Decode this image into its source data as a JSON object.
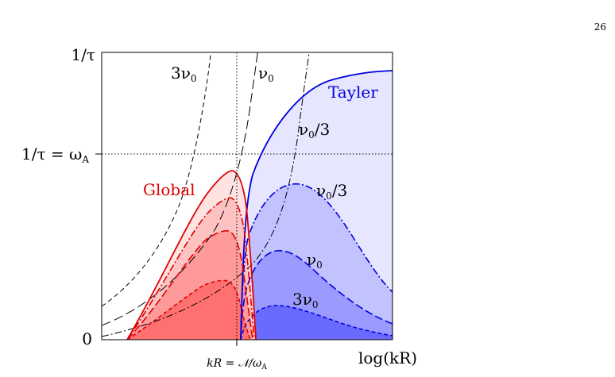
{
  "page_number": "26",
  "axes": {
    "y_top": "1/τ",
    "y_mid": "1/τ = ω",
    "y_mid_sub": "A",
    "y_zero": "0",
    "x_tick": "kR = 𝒩/ω",
    "x_tick_sub": "A",
    "x_label": "log(kR)"
  },
  "curve_labels": {
    "three_nu0_top": "3ν",
    "three_nu0_top_sub": "0",
    "nu0_top": "ν",
    "nu0_top_sub": "0",
    "nu0_third_upper": "ν",
    "nu0_third_upper_sub": "0",
    "nu0_third_upper_suffix": "/3",
    "nu0_third_right": "ν",
    "nu0_third_right_sub": "0",
    "nu0_third_right_suffix": "/3",
    "nu0_right": "ν",
    "nu0_right_sub": "0",
    "three_nu0_right": "3ν",
    "three_nu0_right_sub": "0"
  },
  "region_labels": {
    "global": "Global",
    "tayler": "Tayler"
  },
  "colors": {
    "global": "#e00000",
    "tayler": "#0000e0",
    "global_fill_1": "#ff7070",
    "global_fill_2": "#ff9a9a",
    "global_fill_3": "#ffc2c2",
    "global_fill_4": "#ffe3e3",
    "tayler_fill_1": "#6a6aff",
    "tayler_fill_2": "#9a9aff",
    "tayler_fill_3": "#c2c2ff",
    "tayler_fill_4": "#e6e6ff"
  }
}
